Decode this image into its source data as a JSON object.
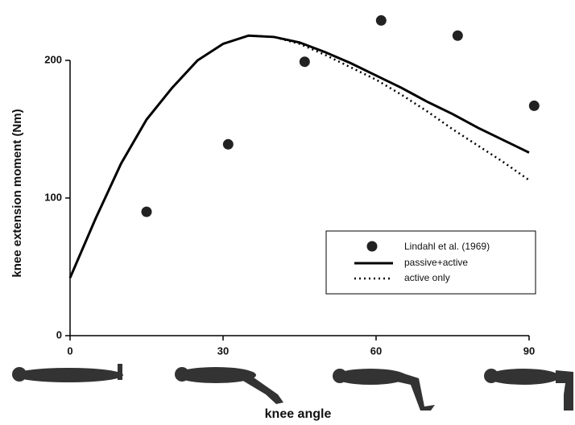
{
  "chart_data": {
    "type": "line",
    "x_label": "knee angle",
    "y_label": "knee extension moment (Nm)",
    "xlim": [
      0,
      92
    ],
    "ylim": [
      0,
      232
    ],
    "xticks": [
      0,
      30,
      60,
      90
    ],
    "yticks": [
      0,
      100,
      200
    ],
    "x": [
      0,
      5,
      10,
      15,
      20,
      25,
      30,
      35,
      40,
      45,
      50,
      55,
      60,
      65,
      70,
      75,
      80,
      85,
      90
    ],
    "series": [
      {
        "name": "passive+active",
        "color": "#000000",
        "style": "solid",
        "values": [
          42,
          85,
          125,
          157,
          180,
          200,
          212,
          218,
          217,
          213,
          206,
          198,
          189,
          180,
          170,
          161,
          151,
          142,
          133
        ]
      },
      {
        "name": "active only",
        "color": "#000000",
        "style": "dotted",
        "values": [
          42,
          85,
          125,
          157,
          180,
          200,
          212,
          218,
          217,
          212,
          204,
          195,
          186,
          175,
          163,
          150,
          138,
          126,
          113
        ]
      }
    ],
    "scatter": {
      "name": "Lindahl et al. (1969)",
      "color": "#222222",
      "x": [
        15,
        31,
        46,
        61,
        76,
        91
      ],
      "values": [
        90,
        139,
        199,
        229,
        218,
        167
      ]
    }
  }
}
